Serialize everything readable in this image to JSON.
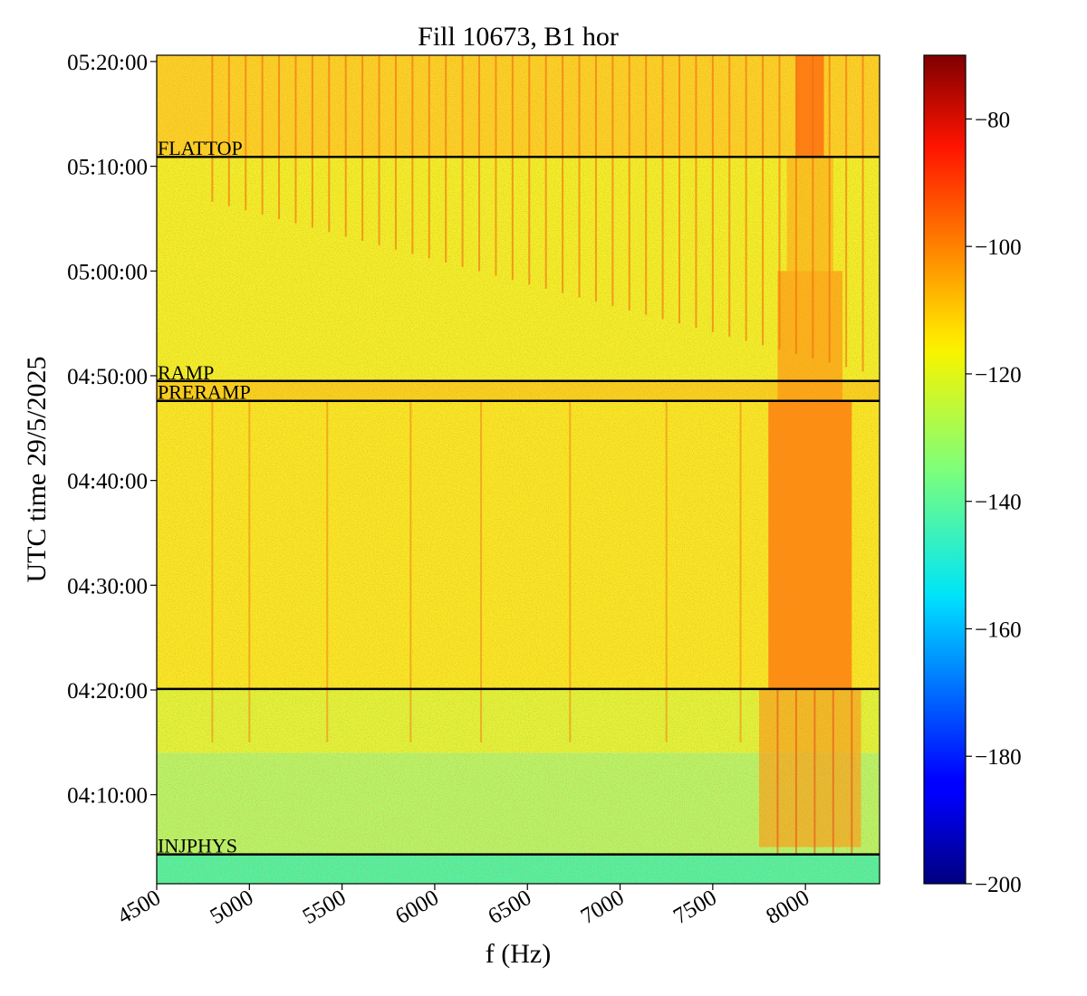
{
  "chart_data": {
    "type": "heatmap",
    "title": "Fill 10673, B1 hor",
    "xlabel": "f (Hz)",
    "ylabel": "UTC time 29/5/2025",
    "xlim": [
      4500,
      8400
    ],
    "x_ticks": [
      4500,
      5000,
      5500,
      6000,
      6500,
      7000,
      7500,
      8000
    ],
    "x_tick_labels": [
      "4500",
      "5000",
      "5500",
      "6000",
      "6500",
      "7000",
      "7500",
      "8000"
    ],
    "y_ticks": [
      {
        "label": "05:20:00",
        "minutes": 80
      },
      {
        "label": "05:10:00",
        "minutes": 70
      },
      {
        "label": "05:00:00",
        "minutes": 60
      },
      {
        "label": "04:50:00",
        "minutes": 50
      },
      {
        "label": "04:40:00",
        "minutes": 40
      },
      {
        "label": "04:30:00",
        "minutes": 30
      },
      {
        "label": "04:20:00",
        "minutes": 20
      },
      {
        "label": "04:10:00",
        "minutes": 10
      }
    ],
    "ylim_minutes_after_0400": [
      1.5,
      80.6
    ],
    "colormap": "jet",
    "colorbar": {
      "min": -200,
      "max": -70,
      "ticks": [
        -80,
        -100,
        -120,
        -140,
        -160,
        -180,
        -200
      ],
      "tick_labels": [
        "−80",
        "−100",
        "−120",
        "−140",
        "−160",
        "−180",
        "−200"
      ]
    },
    "phase_markers": [
      {
        "label": "FLATTOP",
        "minutes": 70.9
      },
      {
        "label": "RAMP",
        "minutes": 49.5
      },
      {
        "label": "PRERAMP",
        "minutes": 47.6
      },
      {
        "label": "",
        "minutes": 20.1
      },
      {
        "label": "INJPHYS",
        "minutes": 4.3
      }
    ],
    "grid": false
  }
}
